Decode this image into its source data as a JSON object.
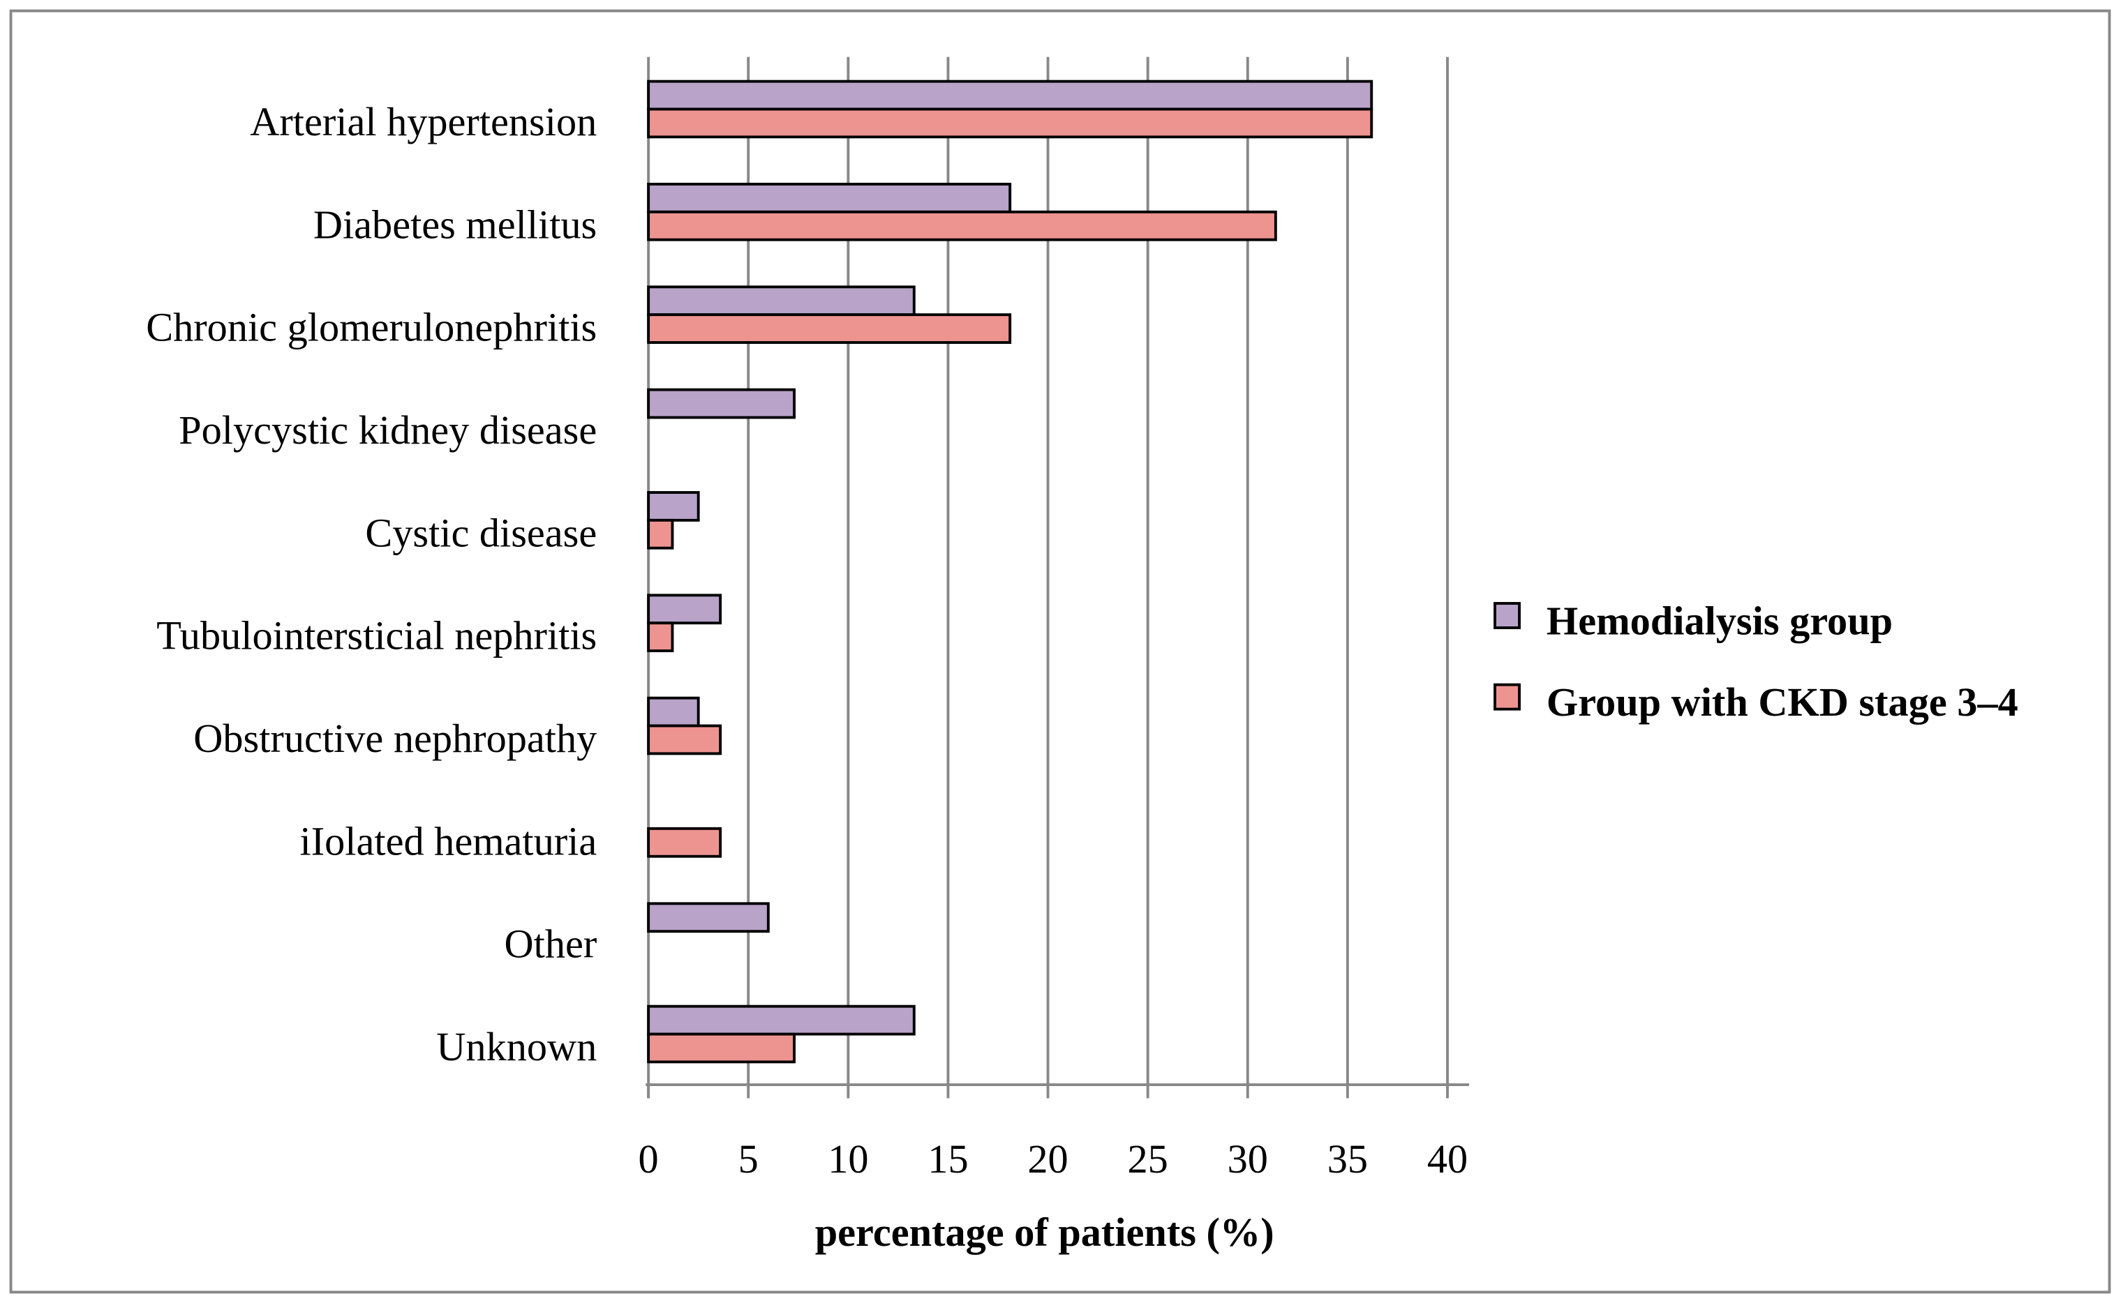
{
  "chart_data": {
    "type": "bar",
    "orientation": "horizontal",
    "categories": [
      "Arterial hypertension",
      "Diabetes mellitus",
      "Chronic glomerulonephritis",
      "Polycystic kidney disease",
      "Cystic disease",
      "Tubulointersticial nephritis",
      "Obstructive nephropathy",
      "iIolated hematuria",
      "Other",
      "Unknown"
    ],
    "series": [
      {
        "name": "Hemodialysis group",
        "color": "#b9a3c9",
        "values": [
          36.2,
          18.1,
          13.3,
          7.3,
          2.5,
          3.6,
          2.5,
          null,
          6.0,
          13.3
        ]
      },
      {
        "name": "Group with CKD stage 3–4",
        "color": "#ee9490",
        "values": [
          36.2,
          31.4,
          18.1,
          null,
          1.2,
          1.2,
          3.6,
          3.6,
          null,
          7.3
        ]
      }
    ],
    "x_label": "percentage of patients (%)",
    "xlim": [
      0,
      40
    ],
    "xticks": [
      0,
      5,
      10,
      15,
      20,
      25,
      30,
      35,
      40
    ],
    "grid": true,
    "legend": "right"
  }
}
